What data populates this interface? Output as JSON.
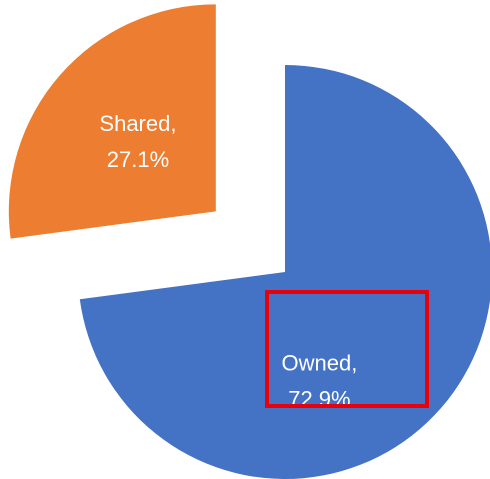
{
  "chart_data": {
    "type": "pie",
    "categories": [
      "Owned",
      "Shared"
    ],
    "values": [
      72.9,
      27.1
    ],
    "value_labels": [
      "72.9%",
      "27.1%"
    ],
    "label_separator": ",",
    "colors": [
      "#4472c4",
      "#ed7d31"
    ],
    "exploded": [
      false,
      true
    ]
  }
}
